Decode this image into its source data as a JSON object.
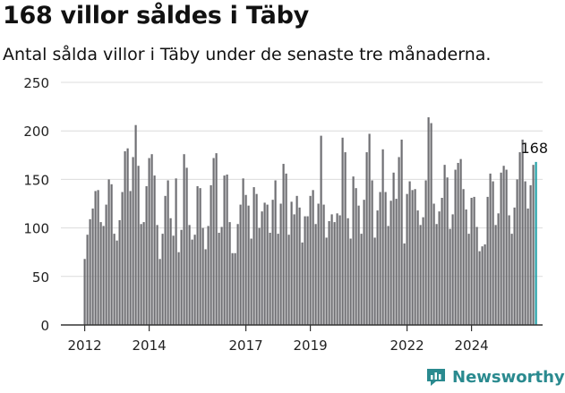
{
  "title": "168 villor såldes i Täby",
  "subtitle": "Antal sålda villor i Täby under de senaste tre månaderna.",
  "brand": {
    "name": "Newsworthy",
    "icon": "newsworthy-logo-icon"
  },
  "colors": {
    "bar": "#6f6f73",
    "highlight": "#22a0a7",
    "grid": "#dcdcdc",
    "axis": "#333333",
    "brand": "#2a8a8f"
  },
  "chart_data": {
    "type": "bar",
    "title": "168 villor såldes i Täby",
    "xlabel": "",
    "ylabel": "",
    "ylim": [
      0,
      250
    ],
    "yticks": [
      0,
      50,
      100,
      150,
      200,
      250
    ],
    "grid": true,
    "xticks": [
      "2012",
      "2014",
      "2017",
      "2019",
      "2022",
      "2024"
    ],
    "annotation": {
      "text": "168",
      "target": "last"
    },
    "x_start": "2012-01",
    "frequency": "monthly",
    "values": [
      68,
      93,
      109,
      120,
      138,
      139,
      106,
      102,
      124,
      150,
      145,
      94,
      87,
      108,
      137,
      179,
      182,
      138,
      173,
      206,
      164,
      104,
      106,
      143,
      172,
      176,
      154,
      103,
      68,
      94,
      133,
      149,
      110,
      92,
      151,
      75,
      98,
      176,
      162,
      103,
      88,
      93,
      143,
      141,
      100,
      78,
      102,
      144,
      172,
      177,
      95,
      101,
      154,
      155,
      106,
      74,
      74,
      104,
      124,
      151,
      134,
      123,
      89,
      142,
      135,
      100,
      117,
      126,
      124,
      95,
      129,
      149,
      94,
      125,
      166,
      156,
      93,
      127,
      114,
      133,
      121,
      85,
      112,
      112,
      133,
      139,
      104,
      125,
      195,
      124,
      90,
      107,
      114,
      106,
      115,
      113,
      193,
      178,
      110,
      89,
      153,
      141,
      123,
      94,
      129,
      178,
      197,
      149,
      90,
      118,
      137,
      181,
      137,
      102,
      128,
      157,
      130,
      173,
      191,
      84,
      135,
      148,
      139,
      140,
      118,
      103,
      111,
      149,
      214,
      208,
      125,
      104,
      117,
      131,
      165,
      152,
      99,
      114,
      160,
      167,
      171,
      140,
      119,
      94,
      131,
      132,
      101,
      76,
      81,
      83,
      132,
      156,
      148,
      103,
      115,
      157,
      164,
      160,
      113,
      94,
      121,
      150,
      178,
      191,
      148,
      120,
      144,
      165,
      168
    ]
  }
}
